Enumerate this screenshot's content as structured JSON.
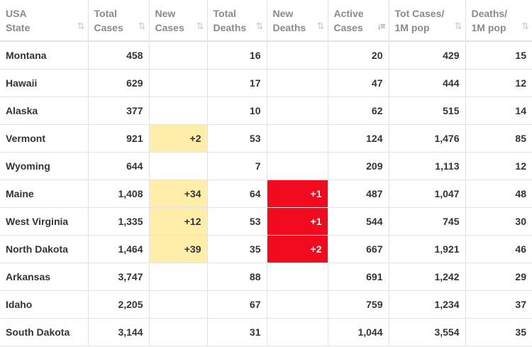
{
  "headers": [
    {
      "line1": "USA",
      "line2": "State",
      "sort": "⇅"
    },
    {
      "line1": "Total",
      "line2": "Cases",
      "sort": "⇅"
    },
    {
      "line1": "New",
      "line2": "Cases",
      "sort": "⇅"
    },
    {
      "line1": "Total",
      "line2": "Deaths",
      "sort": "⇅"
    },
    {
      "line1": "New",
      "line2": "Deaths",
      "sort": "⇅"
    },
    {
      "line1": "Active",
      "line2": "Cases",
      "sort": "↓≡"
    },
    {
      "line1": "Tot Cases/",
      "line2": "1M pop",
      "sort": "⇅"
    },
    {
      "line1": "Deaths/",
      "line2": "1M pop",
      "sort": "⇅"
    }
  ],
  "colors": {
    "new_cases_bg": "#ffeeaa",
    "new_deaths_bg": "#f20a1e"
  },
  "rows": [
    {
      "state": "Montana",
      "total_cases": "458",
      "new_cases": "",
      "total_deaths": "16",
      "new_deaths": "",
      "active_cases": "20",
      "tot_cases_per_1m": "429",
      "deaths_per_1m": "15"
    },
    {
      "state": "Hawaii",
      "total_cases": "629",
      "new_cases": "",
      "total_deaths": "17",
      "new_deaths": "",
      "active_cases": "47",
      "tot_cases_per_1m": "444",
      "deaths_per_1m": "12"
    },
    {
      "state": "Alaska",
      "total_cases": "377",
      "new_cases": "",
      "total_deaths": "10",
      "new_deaths": "",
      "active_cases": "62",
      "tot_cases_per_1m": "515",
      "deaths_per_1m": "14"
    },
    {
      "state": "Vermont",
      "total_cases": "921",
      "new_cases": "+2",
      "total_deaths": "53",
      "new_deaths": "",
      "active_cases": "124",
      "tot_cases_per_1m": "1,476",
      "deaths_per_1m": "85"
    },
    {
      "state": "Wyoming",
      "total_cases": "644",
      "new_cases": "",
      "total_deaths": "7",
      "new_deaths": "",
      "active_cases": "209",
      "tot_cases_per_1m": "1,113",
      "deaths_per_1m": "12"
    },
    {
      "state": "Maine",
      "total_cases": "1,408",
      "new_cases": "+34",
      "total_deaths": "64",
      "new_deaths": "+1",
      "active_cases": "487",
      "tot_cases_per_1m": "1,047",
      "deaths_per_1m": "48"
    },
    {
      "state": "West Virginia",
      "total_cases": "1,335",
      "new_cases": "+12",
      "total_deaths": "53",
      "new_deaths": "+1",
      "active_cases": "544",
      "tot_cases_per_1m": "745",
      "deaths_per_1m": "30"
    },
    {
      "state": "North Dakota",
      "total_cases": "1,464",
      "new_cases": "+39",
      "total_deaths": "35",
      "new_deaths": "+2",
      "active_cases": "667",
      "tot_cases_per_1m": "1,921",
      "deaths_per_1m": "46"
    },
    {
      "state": "Arkansas",
      "total_cases": "3,747",
      "new_cases": "",
      "total_deaths": "88",
      "new_deaths": "",
      "active_cases": "691",
      "tot_cases_per_1m": "1,242",
      "deaths_per_1m": "29"
    },
    {
      "state": "Idaho",
      "total_cases": "2,205",
      "new_cases": "",
      "total_deaths": "67",
      "new_deaths": "",
      "active_cases": "759",
      "tot_cases_per_1m": "1,234",
      "deaths_per_1m": "37"
    },
    {
      "state": "South Dakota",
      "total_cases": "3,144",
      "new_cases": "",
      "total_deaths": "31",
      "new_deaths": "",
      "active_cases": "1,044",
      "tot_cases_per_1m": "3,554",
      "deaths_per_1m": "35"
    }
  ]
}
